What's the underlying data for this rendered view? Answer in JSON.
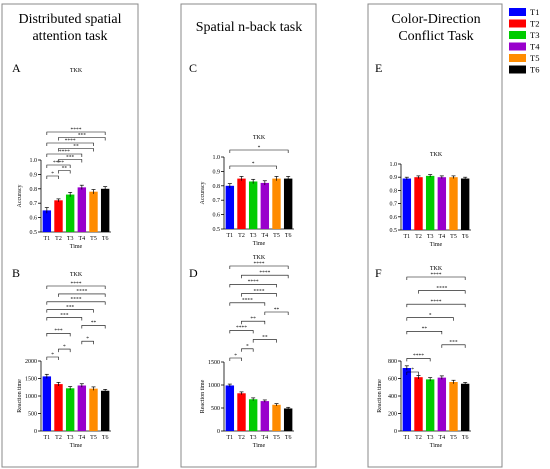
{
  "columns": [
    {
      "title_lines": [
        "Distributed spatial",
        "attention task"
      ]
    },
    {
      "title_lines": [
        "Spatial n-back task"
      ]
    },
    {
      "title_lines": [
        "Color-Direction",
        "Conflict Task"
      ]
    }
  ],
  "legend": [
    {
      "label": "T1",
      "color": "#0000ff"
    },
    {
      "label": "T2",
      "color": "#ff0000"
    },
    {
      "label": "T3",
      "color": "#00cc00"
    },
    {
      "label": "T4",
      "color": "#9900cc"
    },
    {
      "label": "T5",
      "color": "#ff8c00"
    },
    {
      "label": "T6",
      "color": "#000000"
    }
  ],
  "chart_data": [
    {
      "panel": "A",
      "type": "bar",
      "title": "TKK",
      "xlabel": "Time",
      "ylabel": "Accuracy",
      "categories": [
        "T1",
        "T2",
        "T3",
        "T4",
        "T5",
        "T6"
      ],
      "values": [
        0.65,
        0.72,
        0.76,
        0.81,
        0.78,
        0.8
      ],
      "errors": [
        0.02,
        0.01,
        0.015,
        0.015,
        0.015,
        0.015
      ],
      "ylim": [
        0.5,
        1.0
      ],
      "yticks": [
        "0.5",
        "0.6",
        "0.7",
        "0.8",
        "0.9",
        "1.0"
      ],
      "significance": [
        {
          "from": "T1",
          "to": "T2",
          "label": "*"
        },
        {
          "from": "T2",
          "to": "T3",
          "label": "**"
        },
        {
          "from": "T1",
          "to": "T3",
          "label": "****"
        },
        {
          "from": "T2",
          "to": "T4",
          "label": "***"
        },
        {
          "from": "T1",
          "to": "T4",
          "label": "****"
        },
        {
          "from": "T2",
          "to": "T5",
          "label": "**"
        },
        {
          "from": "T1",
          "to": "T5",
          "label": "****"
        },
        {
          "from": "T2",
          "to": "T6",
          "label": "***"
        },
        {
          "from": "T1",
          "to": "T6",
          "label": "****"
        }
      ]
    },
    {
      "panel": "C",
      "type": "bar",
      "title": "TKK",
      "xlabel": "Time",
      "ylabel": "Accuracy",
      "categories": [
        "T1",
        "T2",
        "T3",
        "T4",
        "T5",
        "T6"
      ],
      "values": [
        0.8,
        0.85,
        0.83,
        0.82,
        0.85,
        0.85
      ],
      "errors": [
        0.015,
        0.015,
        0.015,
        0.015,
        0.015,
        0.015
      ],
      "ylim": [
        0.5,
        1.0
      ],
      "yticks": [
        "0.5",
        "0.6",
        "0.7",
        "0.8",
        "0.9",
        "1.0"
      ],
      "significance": [
        {
          "from": "T1",
          "to": "T5",
          "label": "*"
        },
        {
          "from": "T1",
          "to": "T6",
          "label": "*"
        }
      ]
    },
    {
      "panel": "E",
      "type": "bar",
      "title": "TKK",
      "xlabel": "Time",
      "ylabel": "",
      "categories": [
        "T1",
        "T2",
        "T3",
        "T4",
        "T5",
        "T6"
      ],
      "values": [
        0.89,
        0.9,
        0.91,
        0.9,
        0.9,
        0.89
      ],
      "errors": [
        0.01,
        0.01,
        0.01,
        0.01,
        0.01,
        0.01
      ],
      "ylim": [
        0.5,
        1.0
      ],
      "yticks": [
        "0.5",
        "0.6",
        "0.7",
        "0.8",
        "0.9",
        "1.0"
      ],
      "significance": []
    },
    {
      "panel": "B",
      "type": "bar",
      "title": "TKK",
      "xlabel": "Time",
      "ylabel": "Reaction time",
      "categories": [
        "T1",
        "T2",
        "T3",
        "T4",
        "T5",
        "T6"
      ],
      "values": [
        1560,
        1340,
        1220,
        1300,
        1210,
        1150
      ],
      "errors": [
        60,
        50,
        50,
        50,
        50,
        40
      ],
      "ylim": [
        0,
        2000
      ],
      "yticks": [
        "0",
        "500",
        "1000",
        "1500",
        "2000"
      ],
      "significance": [
        {
          "from": "T1",
          "to": "T2",
          "label": "*"
        },
        {
          "from": "T2",
          "to": "T3",
          "label": "*"
        },
        {
          "from": "T4",
          "to": "T5",
          "label": "*"
        },
        {
          "from": "T1",
          "to": "T3",
          "label": "***"
        },
        {
          "from": "T4",
          "to": "T6",
          "label": "**"
        },
        {
          "from": "T1",
          "to": "T4",
          "label": "***"
        },
        {
          "from": "T1",
          "to": "T5",
          "label": "***"
        },
        {
          "from": "T1",
          "to": "T6",
          "label": "****"
        },
        {
          "from": "T2",
          "to": "T6",
          "label": "****"
        },
        {
          "from": "T1",
          "to": "T6",
          "label": "****"
        }
      ]
    },
    {
      "panel": "D",
      "type": "bar",
      "title": "TKK",
      "xlabel": "Time",
      "ylabel": "Reaction time",
      "categories": [
        "T1",
        "T2",
        "T3",
        "T4",
        "T5",
        "T6"
      ],
      "values": [
        990,
        820,
        690,
        650,
        570,
        490
      ],
      "errors": [
        30,
        30,
        30,
        25,
        25,
        25
      ],
      "ylim": [
        0,
        1500
      ],
      "yticks": [
        "0",
        "500",
        "1000",
        "1500"
      ],
      "significance": [
        {
          "from": "T1",
          "to": "T2",
          "label": "*"
        },
        {
          "from": "T2",
          "to": "T3",
          "label": "*"
        },
        {
          "from": "T3",
          "to": "T5",
          "label": "**"
        },
        {
          "from": "T1",
          "to": "T3",
          "label": "****"
        },
        {
          "from": "T2",
          "to": "T4",
          "label": "**"
        },
        {
          "from": "T4",
          "to": "T6",
          "label": "**"
        },
        {
          "from": "T1",
          "to": "T4",
          "label": "****"
        },
        {
          "from": "T2",
          "to": "T5",
          "label": "****"
        },
        {
          "from": "T1",
          "to": "T5",
          "label": "****"
        },
        {
          "from": "T2",
          "to": "T6",
          "label": "****"
        },
        {
          "from": "T1",
          "to": "T6",
          "label": "****"
        }
      ]
    },
    {
      "panel": "F",
      "type": "bar",
      "title": "TKK",
      "xlabel": "Time",
      "ylabel": "Reaction time",
      "categories": [
        "T1",
        "T2",
        "T3",
        "T4",
        "T5",
        "T6"
      ],
      "values": [
        720,
        615,
        590,
        610,
        560,
        540
      ],
      "errors": [
        25,
        20,
        20,
        20,
        20,
        15
      ],
      "ylim": [
        0,
        800
      ],
      "yticks": [
        "0",
        "200",
        "400",
        "600",
        "800"
      ],
      "significance": [
        {
          "from": "T1",
          "to": "T2",
          "label": "*"
        },
        {
          "from": "T1",
          "to": "T3",
          "label": "****"
        },
        {
          "from": "T4",
          "to": "T6",
          "label": "***"
        },
        {
          "from": "T1",
          "to": "T4",
          "label": "**"
        },
        {
          "from": "T1",
          "to": "T5",
          "label": "*"
        },
        {
          "from": "T1",
          "to": "T6",
          "label": "****"
        },
        {
          "from": "T2",
          "to": "T6",
          "label": "****"
        },
        {
          "from": "T1",
          "to": "T6",
          "label": "****"
        }
      ]
    }
  ]
}
